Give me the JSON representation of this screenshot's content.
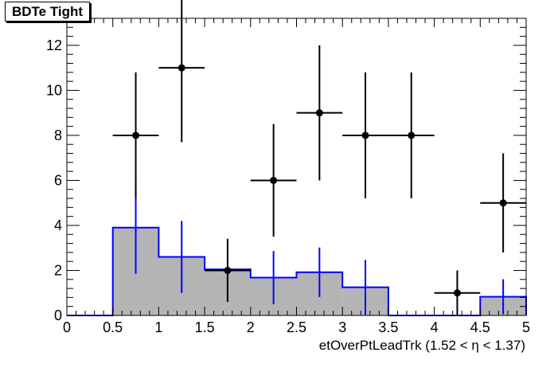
{
  "title": "BDTe Tight",
  "chart_data": {
    "type": "histogram",
    "xlabel": "etOverPtLeadTrk (1.52 <   η < 1.37)",
    "xlim": [
      0,
      5
    ],
    "ylim": [
      0,
      13.2
    ],
    "x_ticks": [
      0,
      0.5,
      1,
      1.5,
      2,
      2.5,
      3,
      3.5,
      4,
      4.5,
      5
    ],
    "x_tick_labels": [
      "0",
      "0.5",
      "1",
      "1.5",
      "2",
      "2.5",
      "3",
      "3.5",
      "4",
      "4.5",
      "5"
    ],
    "y_ticks": [
      0,
      2,
      4,
      6,
      8,
      10,
      12
    ],
    "y_tick_labels": [
      "0",
      "2",
      "4",
      "6",
      "8",
      "10",
      "12"
    ],
    "grid": false,
    "bin_edges": [
      0,
      0.5,
      1,
      1.5,
      2,
      2.5,
      3,
      3.5,
      4,
      4.5,
      5
    ],
    "series": [
      {
        "kind": "filled-histogram",
        "color": "#0000ff",
        "fill": "#b4b4b4",
        "values": [
          0,
          3.9,
          2.6,
          2.05,
          1.68,
          1.92,
          1.25,
          0,
          0,
          0.83
        ],
        "errors": [
          0,
          2.05,
          1.6,
          1.35,
          1.18,
          1.1,
          1.22,
          0,
          0,
          0.78
        ]
      },
      {
        "kind": "points",
        "color": "#000000",
        "x": [
          0.75,
          1.25,
          1.75,
          2.25,
          2.75,
          3.25,
          3.75,
          4.25,
          4.75
        ],
        "y": [
          8,
          11,
          2,
          6,
          9,
          8,
          8,
          1,
          5
        ],
        "yerr_low": [
          2.8,
          3.3,
          1.4,
          2.5,
          3.0,
          2.8,
          2.8,
          1.0,
          2.2
        ],
        "yerr_high": [
          2.8,
          3.3,
          1.4,
          2.5,
          3.0,
          2.8,
          2.8,
          1.0,
          2.2
        ],
        "xerr": 0.25
      }
    ]
  }
}
